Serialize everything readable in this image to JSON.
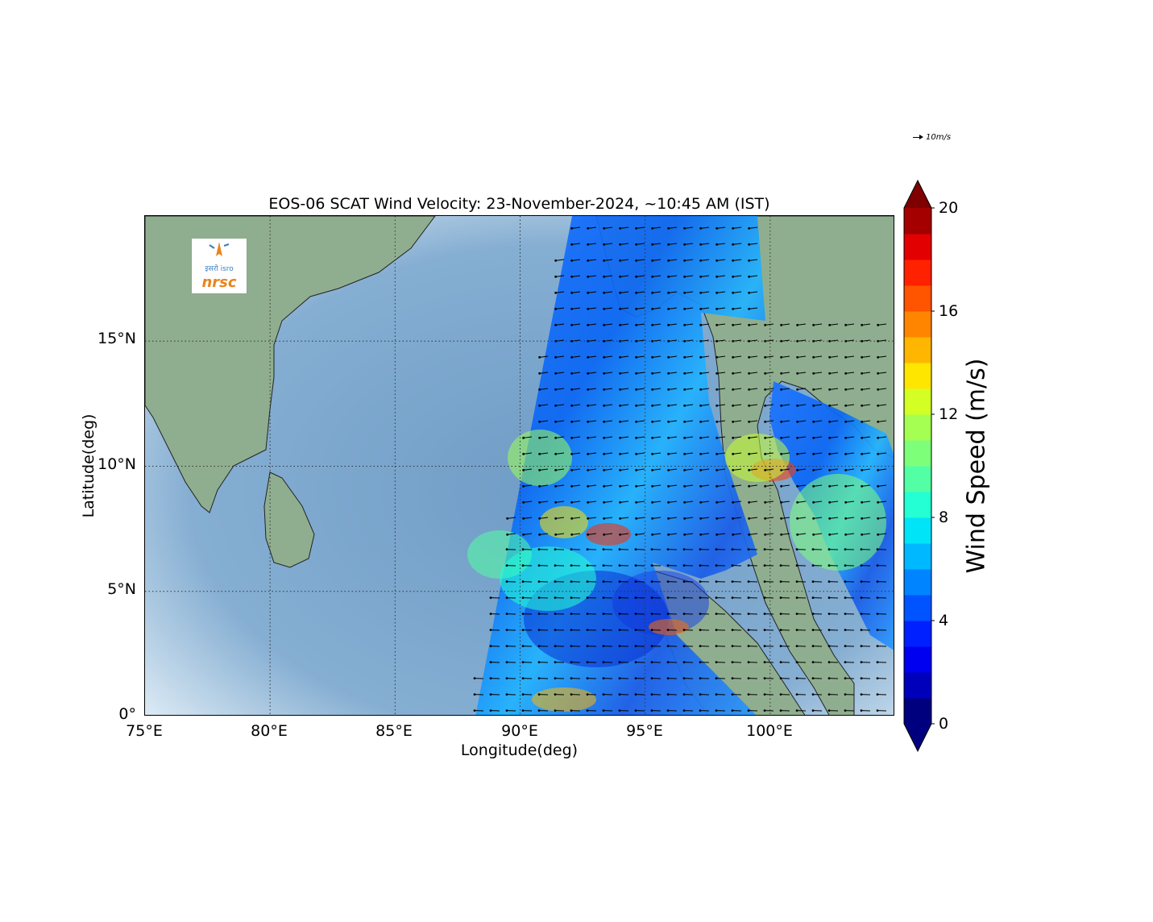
{
  "title": "EOS-06 SCAT Wind Velocity: 23-November-2024, ~10:45 AM (IST)",
  "xlabel": "Longitude(deg)",
  "ylabel": "Latitude(deg)",
  "x_ticks": [
    "75°E",
    "80°E",
    "85°E",
    "90°E",
    "95°E",
    "100°E"
  ],
  "y_ticks": [
    "0°",
    "5°N",
    "10°N",
    "15°N"
  ],
  "colorbar": {
    "label": "Wind Speed (m/s)",
    "ticks": [
      "0",
      "4",
      "8",
      "12",
      "16",
      "20"
    ],
    "range": [
      0,
      20
    ],
    "colors": [
      "#00007f",
      "#0000bb",
      "#0000f1",
      "#0020ff",
      "#0054ff",
      "#0084ff",
      "#00b8ff",
      "#00e4f7",
      "#24ffd3",
      "#52ffa4",
      "#7dff7a",
      "#a4ff52",
      "#d3ff24",
      "#ffe600",
      "#ffb600",
      "#ff8500",
      "#ff5400",
      "#ff2100",
      "#e30000",
      "#a40000"
    ],
    "under_color": "#00007f",
    "over_color": "#7f0000"
  },
  "quiver_key": "10m/s",
  "logo": {
    "hindi": "इसरो isro",
    "text": "nrsc"
  },
  "map": {
    "lon_range": [
      75,
      105
    ],
    "lat_range": [
      0,
      20
    ],
    "gridlines": true,
    "ocean_color": "#7aa6cc",
    "land_color": "#8aab8a"
  }
}
